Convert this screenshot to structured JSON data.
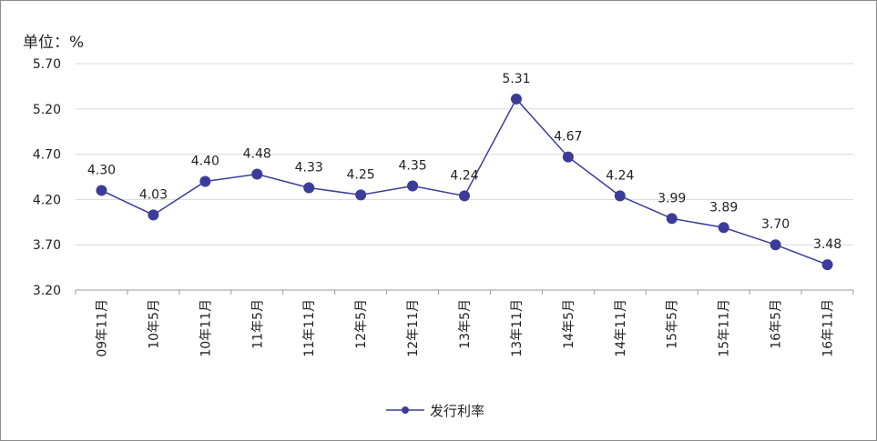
{
  "chart_data": {
    "type": "line",
    "unit_label": "单位：%",
    "categories": [
      "09年11月",
      "10年5月",
      "10年11月",
      "11年5月",
      "11年11月",
      "12年5月",
      "12年11月",
      "13年5月",
      "13年11月",
      "14年5月",
      "14年11月",
      "15年5月",
      "15年11月",
      "16年5月",
      "16年11月"
    ],
    "series": [
      {
        "name": "发行利率",
        "values": [
          4.3,
          4.03,
          4.4,
          4.48,
          4.33,
          4.25,
          4.35,
          4.24,
          5.31,
          4.67,
          4.24,
          3.99,
          3.89,
          3.7,
          3.48
        ],
        "labels": [
          "4.30",
          "4.03",
          "4.40",
          "4.48",
          "4.33",
          "4.25",
          "4.35",
          "4.24",
          "5.31",
          "4.67",
          "4.24",
          "3.99",
          "3.89",
          "3.70",
          "3.48"
        ],
        "color": "#3b3c9a"
      }
    ],
    "y_ticks": [
      "3.20",
      "3.70",
      "4.20",
      "4.70",
      "5.20",
      "5.70"
    ],
    "ylim": [
      3.2,
      5.7
    ],
    "grid": true,
    "legend_position": "bottom"
  }
}
